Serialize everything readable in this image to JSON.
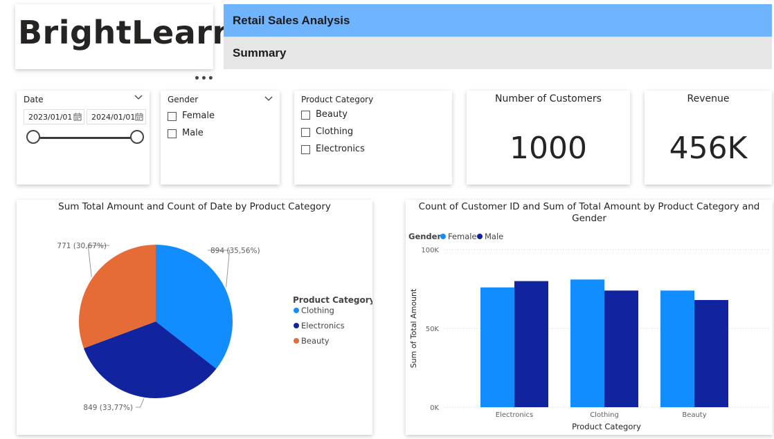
{
  "logo": {
    "text": "BrightLearn"
  },
  "header": {
    "title": "Retail Sales Analysis",
    "subtitle": "Summary",
    "more_options": "•••"
  },
  "slicers": {
    "date": {
      "title": "Date",
      "start": "2023/01/01",
      "end": "2024/01/01"
    },
    "gender": {
      "title": "Gender",
      "options": [
        "Female",
        "Male"
      ]
    },
    "product_category": {
      "title": "Product Category",
      "options": [
        "Beauty",
        "Clothing",
        "Electronics"
      ]
    }
  },
  "kpis": {
    "customers": {
      "label": "Number of Customers",
      "value": "1000"
    },
    "revenue": {
      "label": "Revenue",
      "value": "456K"
    }
  },
  "colors": {
    "accent_blue": "#6fb4ff",
    "clothing": "#118dff",
    "electronics": "#12239e",
    "beauty": "#e66c37",
    "female": "#118dff",
    "male": "#12239e"
  },
  "icons": [
    "chevron-down-icon",
    "calendar-icon",
    "more-options-icon"
  ],
  "chart_data": [
    {
      "type": "pie",
      "title": "Sum Total Amount and Count of Date by Product Category",
      "legend_title": "Product Category",
      "legend_position": "right",
      "slices": [
        {
          "name": "Clothing",
          "value": 894,
          "label": "894 (35,56%)",
          "color": "#118dff"
        },
        {
          "name": "Electronics",
          "value": 849,
          "label": "849 (33,77%)",
          "color": "#12239e"
        },
        {
          "name": "Beauty",
          "value": 771,
          "label": "771 (30,67%)",
          "color": "#e66c37"
        }
      ]
    },
    {
      "type": "bar",
      "title": "Count of Customer ID and Sum of Total Amount by Product Category and Gender",
      "legend_title": "Gender",
      "legend_position": "top-left",
      "xlabel": "Product Category",
      "ylabel": "Sum of Total Amount",
      "ylim": [
        0,
        100000
      ],
      "yticks": [
        {
          "value": 0,
          "label": "0K"
        },
        {
          "value": 50000,
          "label": "50K"
        },
        {
          "value": 100000,
          "label": "100K"
        }
      ],
      "categories": [
        "Electronics",
        "Clothing",
        "Beauty"
      ],
      "series": [
        {
          "name": "Female",
          "color": "#118dff",
          "values": [
            76000,
            81000,
            74000
          ]
        },
        {
          "name": "Male",
          "color": "#12239e",
          "values": [
            80000,
            74000,
            68000
          ]
        }
      ]
    }
  ]
}
